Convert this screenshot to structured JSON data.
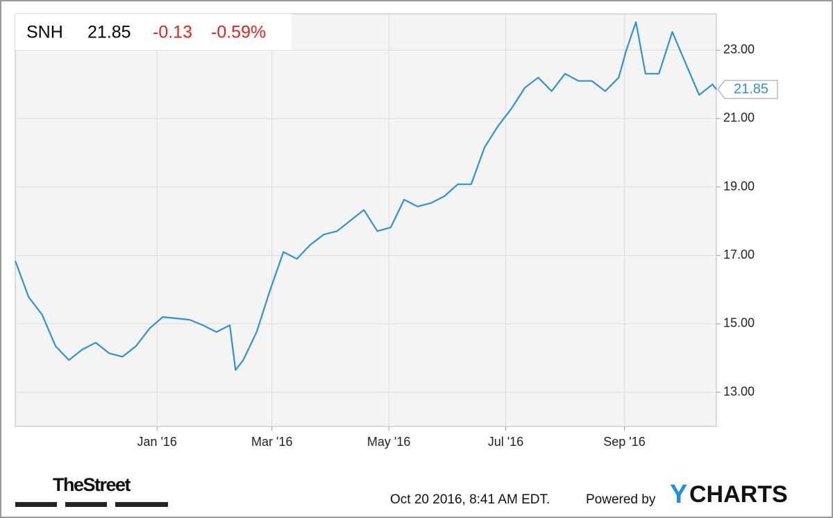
{
  "header": {
    "ticker": "SNH",
    "price": "21.85",
    "change": "-0.13",
    "change_pct": "-0.59%"
  },
  "chart_data": {
    "type": "line",
    "x": [
      0,
      7,
      14,
      21,
      28,
      35,
      42,
      49,
      56,
      63,
      70,
      77,
      84,
      91,
      98,
      105,
      112,
      115,
      119,
      126,
      133,
      140,
      147,
      154,
      161,
      168,
      175,
      182,
      189,
      196,
      203,
      210,
      217,
      224,
      231,
      238,
      245,
      252,
      259,
      266,
      273,
      280,
      287,
      294,
      301,
      308,
      315,
      319,
      324,
      329,
      336,
      343,
      350,
      357,
      364,
      366
    ],
    "values": [
      16.84,
      15.78,
      15.27,
      14.35,
      13.94,
      14.25,
      14.45,
      14.14,
      14.04,
      14.35,
      14.86,
      15.2,
      15.16,
      15.12,
      14.96,
      14.76,
      14.96,
      13.65,
      13.94,
      14.76,
      15.98,
      17.1,
      16.9,
      17.31,
      17.61,
      17.71,
      18.02,
      18.33,
      17.71,
      17.82,
      18.63,
      18.43,
      18.53,
      18.73,
      19.08,
      19.08,
      20.16,
      20.78,
      21.29,
      21.9,
      22.2,
      21.8,
      22.31,
      22.1,
      22.1,
      21.8,
      22.2,
      23.0,
      23.82,
      22.31,
      22.31,
      23.53,
      22.61,
      21.69,
      22.0,
      21.85
    ],
    "color": "#2f8fdd",
    "xlim": [
      0,
      366
    ],
    "xticks": [
      {
        "value": 74,
        "label": "Jan '16"
      },
      {
        "value": 134,
        "label": "Mar '16"
      },
      {
        "value": 195,
        "label": "May '16"
      },
      {
        "value": 256,
        "label": "Jul '16"
      },
      {
        "value": 318,
        "label": "Sep '16"
      }
    ],
    "ylim": [
      12.0,
      24.06
    ],
    "yticks": [
      {
        "value": 13,
        "label": "13.00"
      },
      {
        "value": 15,
        "label": "15.00"
      },
      {
        "value": 17,
        "label": "17.00"
      },
      {
        "value": 19,
        "label": "19.00"
      },
      {
        "value": 21,
        "label": "21.00"
      },
      {
        "value": 23,
        "label": "23.00"
      }
    ],
    "grid": true
  },
  "footer": {
    "source": "TheStreet",
    "timestamp": "Oct 20 2016, 8:41 AM EDT.",
    "powered": "Powered by",
    "brand_y": "Y",
    "brand_rest": "CHARTS"
  }
}
